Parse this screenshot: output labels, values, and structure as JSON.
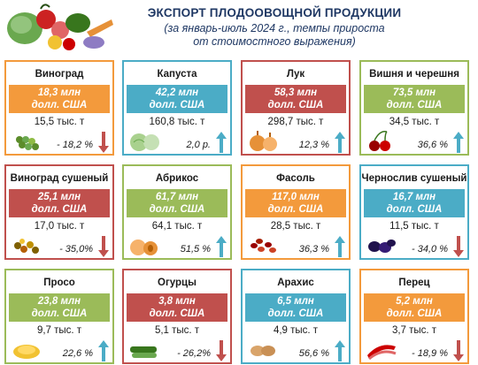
{
  "header": {
    "title": "ЭКСПОРТ ПЛОДООВОЩНОЙ ПРОДУКЦИИ",
    "subtitle_line1": "(за январь-июль 2024 г., темпы прироста",
    "subtitle_line2": "от стоимостного выражения)"
  },
  "colors": {
    "orange": "#f39a3c",
    "blue": "#4bacc6",
    "red": "#c0504d",
    "green": "#9bbb59",
    "arrow_up": "#4bacc6",
    "arrow_down": "#c0504d"
  },
  "cards": [
    {
      "name": "Виноград",
      "value_line1": "18,3 млн",
      "value_line2": "долл. США",
      "volume": "15,5 тыс. т",
      "growth": "- 18,2 %",
      "trend": "down",
      "theme": "orange",
      "icon": "grapes-icon"
    },
    {
      "name": "Капуста",
      "value_line1": "42,2 млн",
      "value_line2": "долл. США",
      "volume": "160,8 тыс. т",
      "growth": "2,0 р.",
      "trend": "up",
      "theme": "blue",
      "icon": "cabbage-icon"
    },
    {
      "name": "Лук",
      "value_line1": "58,3 млн",
      "value_line2": "долл. США",
      "volume": "298,7 тыс. т",
      "growth": "12,3 %",
      "trend": "up",
      "theme": "red",
      "icon": "onion-icon"
    },
    {
      "name": "Вишня и черешня",
      "value_line1": "73,5 млн",
      "value_line2": "долл. США",
      "volume": "34,5 тыс. т",
      "growth": "36,6 %",
      "trend": "up",
      "theme": "green",
      "icon": "cherry-icon"
    },
    {
      "name": "Виноград сушеный",
      "value_line1": "25,1 млн",
      "value_line2": "долл. США",
      "volume": "17,0 тыс. т",
      "growth": "- 35,0%",
      "trend": "down",
      "theme": "red",
      "icon": "raisins-icon"
    },
    {
      "name": "Абрикос",
      "value_line1": "61,7 млн",
      "value_line2": "долл. США",
      "volume": "64,1 тыс. т",
      "growth": "51,5 %",
      "trend": "up",
      "theme": "green",
      "icon": "apricot-icon"
    },
    {
      "name": "Фасоль",
      "value_line1": "117,0 млн",
      "value_line2": "долл. США",
      "volume": "28,5 тыс. т",
      "growth": "36,3 %",
      "trend": "up",
      "theme": "orange",
      "icon": "beans-icon"
    },
    {
      "name": "Чернослив сушеный",
      "value_line1": "16,7 млн",
      "value_line2": "долл. США",
      "volume": "11,5 тыс. т",
      "growth": "- 34,0 %",
      "trend": "down",
      "theme": "blue",
      "icon": "prunes-icon"
    },
    {
      "name": "Просо",
      "value_line1": "23,8 млн",
      "value_line2": "долл. США",
      "volume": "9,7 тыс. т",
      "growth": "22,6 %",
      "trend": "up",
      "theme": "green",
      "icon": "millet-icon"
    },
    {
      "name": "Огурцы",
      "value_line1": "3,8 млн",
      "value_line2": "долл. США",
      "volume": "5,1 тыс. т",
      "growth": "- 26,2%",
      "trend": "down",
      "theme": "red",
      "icon": "cucumber-icon"
    },
    {
      "name": "Арахис",
      "value_line1": "6,5 млн",
      "value_line2": "долл. США",
      "volume": "4,9 тыс. т",
      "growth": "56,6 %",
      "trend": "up",
      "theme": "blue",
      "icon": "peanut-icon"
    },
    {
      "name": "Перец",
      "value_line1": "5,2 млн",
      "value_line2": "долл. США",
      "volume": "3,7 тыс. т",
      "growth": "- 18,9 %",
      "trend": "down",
      "theme": "orange",
      "icon": "pepper-icon"
    }
  ]
}
